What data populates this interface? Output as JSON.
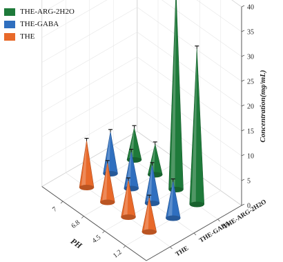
{
  "chart_data": {
    "type": "3d-bar",
    "bar_shape": "cone",
    "title": "",
    "xlabel": "PH",
    "ylabel": "",
    "zlabel": "Concentration(mg/mL)",
    "x_categories": [
      "1.2",
      "4.5",
      "6.8",
      "7"
    ],
    "y_categories": [
      "THE",
      "THE-GABA",
      "THE-ARG-2H2O"
    ],
    "z_ticks": [
      0,
      5,
      10,
      15,
      20,
      25,
      30,
      35,
      40
    ],
    "zlim": [
      0,
      40
    ],
    "grid": true,
    "legend_position": "top-left",
    "series": [
      {
        "name": "THE-ARG-2H2O",
        "color": "#1e7a3a",
        "values": [
          6.5,
          6.2,
          40.5,
          31.5
        ]
      },
      {
        "name": "THE-GABA",
        "color": "#2f6fbf",
        "values": [
          8.5,
          7.5,
          7.8,
          7.5
        ]
      },
      {
        "name": "THE",
        "color": "#e8692a",
        "values": [
          9.5,
          8.0,
          7.5,
          7.0
        ]
      }
    ]
  }
}
